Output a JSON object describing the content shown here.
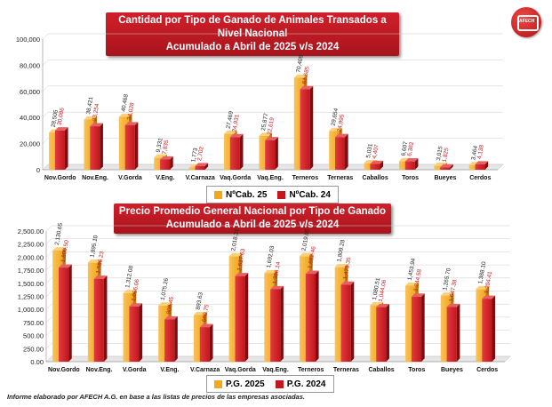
{
  "brand": {
    "logo_text": "AFECH"
  },
  "colors": {
    "series1": "#f2a81d",
    "series2": "#c4161c",
    "title_bg": "#c11b22"
  },
  "chart_data": [
    {
      "type": "bar",
      "title_line1": "Cantidad por Tipo de Ganado de Animales Transados a Nivel Nacional",
      "title_line2": "Acumulado a Abril de 2025 v/s 2024",
      "categories": [
        "Nov.Gordo",
        "Nov.Eng.",
        "V.Gorda",
        "V.Eng.",
        "V.Carnaza",
        "Vaq.Gorda",
        "Vaq.Eng.",
        "Terneros",
        "Terneras",
        "Caballos",
        "Toros",
        "Bueyes",
        "Cerdos"
      ],
      "series": [
        {
          "name": "NºCab. 25",
          "values": [
            28505,
            38421,
            40468,
            9331,
            1773,
            27469,
            25877,
            70409,
            29654,
            5031,
            6607,
            3015,
            3464
          ],
          "labels": [
            "28,505",
            "38,421",
            "40,468",
            "9,331",
            "1,773",
            "27,469",
            "25,877",
            "70,409",
            "29,654",
            "5,031",
            "6,607",
            "3,015",
            "3,464"
          ]
        },
        {
          "name": "NºCab. 24",
          "values": [
            30086,
            33254,
            34028,
            7835,
            2702,
            24931,
            22619,
            61685,
            24995,
            4407,
            6382,
            1825,
            4138
          ],
          "labels": [
            "30,086",
            "33,254",
            "34,028",
            "7,835",
            "2,702",
            "24,931",
            "22,619",
            "61,685",
            "24,995",
            "4,407",
            "6,382",
            "1,825",
            "4,138"
          ]
        }
      ],
      "ylim": [
        0,
        100000
      ],
      "yticks": [
        "0",
        "20,000",
        "40,000",
        "60,000",
        "80,000",
        "100,000"
      ],
      "legend": "bottom"
    },
    {
      "type": "bar",
      "title_line1": "Precio Promedio General Nacional por Tipo de Ganado",
      "title_line2": "Acumulado a Abril de 2025 v/s 2024",
      "categories": [
        "Nov.Gordo",
        "Nov.Eng.",
        "V.Gorda",
        "V.Eng.",
        "V.Carnaza",
        "Vaq.Gorda",
        "Vaq.Eng.",
        "Terneros",
        "Terneras",
        "Caballos",
        "Toros",
        "Bueyes",
        "Cerdos"
      ],
      "series": [
        {
          "name": "P.G. 2025",
          "values": [
            2130.65,
            1895.1,
            1312.08,
            1075.26,
            893.63,
            2018.31,
            1692.03,
            2019.05,
            1809.28,
            1080.51,
            1453.94,
            1265.7,
            1388.1
          ],
          "labels": [
            "2,130.65",
            "1,895.10",
            "1,312.08",
            "1,075.26",
            "893.63",
            "2,018.31",
            "1,692.03",
            "2,019.05",
            "1,809.28",
            "1,080.51",
            "1,453.94",
            "1,265.70",
            "1,388.10"
          ]
        },
        {
          "name": "P.G. 2024",
          "values": [
            1800.5,
            1586.23,
            1056.06,
            808.45,
            660.75,
            1637.63,
            1386.14,
            1682.46,
            1473.35,
            1044.06,
            1244.58,
            1047.38,
            1204.41
          ],
          "labels": [
            "1,800.50",
            "1,586.23",
            "1,056.06",
            "808.45",
            "660.75",
            "1,637.63",
            "1,386.14",
            "1,682.46",
            "1,473.35",
            "1,044.06",
            "1,244.58",
            "1,047.38",
            "1,204.41"
          ]
        }
      ],
      "ylim": [
        0,
        2500
      ],
      "yticks": [
        "0.00",
        "250.00",
        "500.00",
        "750.00",
        "1,000.00",
        "1,250.00",
        "1,500.00",
        "1,750.00",
        "2,000.00",
        "2,250.00",
        "2,500.00"
      ],
      "legend": "bottom"
    }
  ],
  "footnote": "Informe elaborado por AFECH A.G. en base a las listas de precios de las empresas asociadas."
}
